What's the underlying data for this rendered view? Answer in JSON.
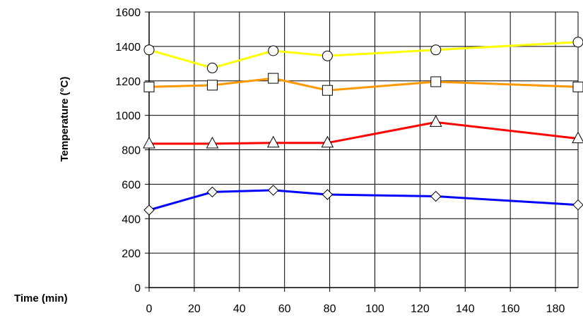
{
  "chart_data": {
    "type": "line",
    "title": "",
    "xlabel": "Time (min)",
    "ylabel": "Temperature (°C)",
    "xlim": [
      0,
      190
    ],
    "ylim": [
      0,
      1600
    ],
    "x_ticks": [
      0,
      20,
      40,
      60,
      80,
      100,
      120,
      140,
      160,
      180
    ],
    "y_ticks": [
      0,
      200,
      400,
      600,
      800,
      1000,
      1200,
      1400,
      1600
    ],
    "grid": true,
    "legend": "none",
    "series": [
      {
        "color": "#ffff00",
        "marker": "circle",
        "x": [
          0,
          28,
          55,
          79,
          127,
          190
        ],
        "y": [
          1380,
          1275,
          1375,
          1345,
          1380,
          1425
        ]
      },
      {
        "color": "#ff9900",
        "marker": "square",
        "x": [
          0,
          28,
          55,
          79,
          127,
          190
        ],
        "y": [
          1165,
          1175,
          1215,
          1145,
          1195,
          1165
        ]
      },
      {
        "color": "#ff0000",
        "marker": "triangle",
        "x": [
          0,
          28,
          55,
          79,
          127,
          190
        ],
        "y": [
          835,
          835,
          840,
          840,
          960,
          865
        ]
      },
      {
        "color": "#0000ff",
        "marker": "diamond",
        "x": [
          0,
          28,
          55,
          79,
          127,
          190
        ],
        "y": [
          450,
          555,
          565,
          540,
          530,
          480
        ]
      }
    ]
  }
}
